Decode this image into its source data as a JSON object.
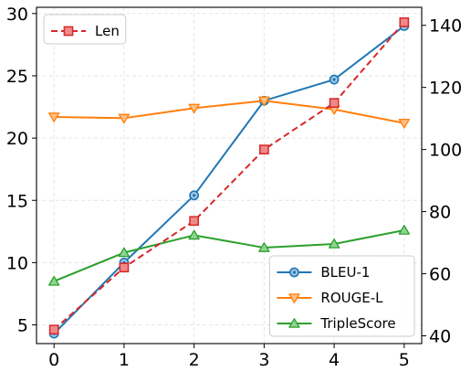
{
  "chart_data": {
    "type": "line",
    "title": "",
    "xlabel": "",
    "ylabel": "",
    "y2label": "",
    "grid": true,
    "x": [
      0,
      1,
      2,
      3,
      4,
      5
    ],
    "xlim": [
      -0.25,
      5.25
    ],
    "ylim": [
      3.5,
      30.5
    ],
    "y2lim": [
      37.5,
      145.8
    ],
    "xticks": [
      0,
      1,
      2,
      3,
      4,
      5
    ],
    "yticks": [
      5,
      10,
      15,
      20,
      25,
      30
    ],
    "y2ticks": [
      40,
      60,
      80,
      100,
      120,
      140
    ],
    "series": [
      {
        "name": "BLEU-1",
        "axis": "left",
        "color": "#1f77b4",
        "marker": "circle-dot",
        "dash": "solid",
        "values": [
          4.3,
          10.0,
          15.4,
          23.0,
          24.7,
          29.0
        ]
      },
      {
        "name": "ROUGE-L",
        "axis": "left",
        "color": "#ff7f0e",
        "marker": "triangle-down",
        "dash": "solid",
        "values": [
          21.7,
          21.6,
          22.4,
          23.0,
          22.3,
          21.2
        ]
      },
      {
        "name": "TripleScore",
        "axis": "left",
        "color": "#2ca02c",
        "marker": "triangle-up",
        "dash": "solid",
        "values": [
          8.5,
          10.8,
          12.2,
          11.2,
          11.5,
          12.6
        ]
      },
      {
        "name": "Len",
        "axis": "right",
        "color": "#d62728",
        "marker": "square",
        "dash": "dashed",
        "values": [
          42,
          62,
          77,
          100,
          115,
          141
        ]
      }
    ],
    "legends": [
      {
        "position": "top-left",
        "entries": [
          "Len"
        ]
      },
      {
        "position": "bottom-right",
        "entries": [
          "BLEU-1",
          "ROUGE-L",
          "TripleScore"
        ]
      }
    ]
  }
}
